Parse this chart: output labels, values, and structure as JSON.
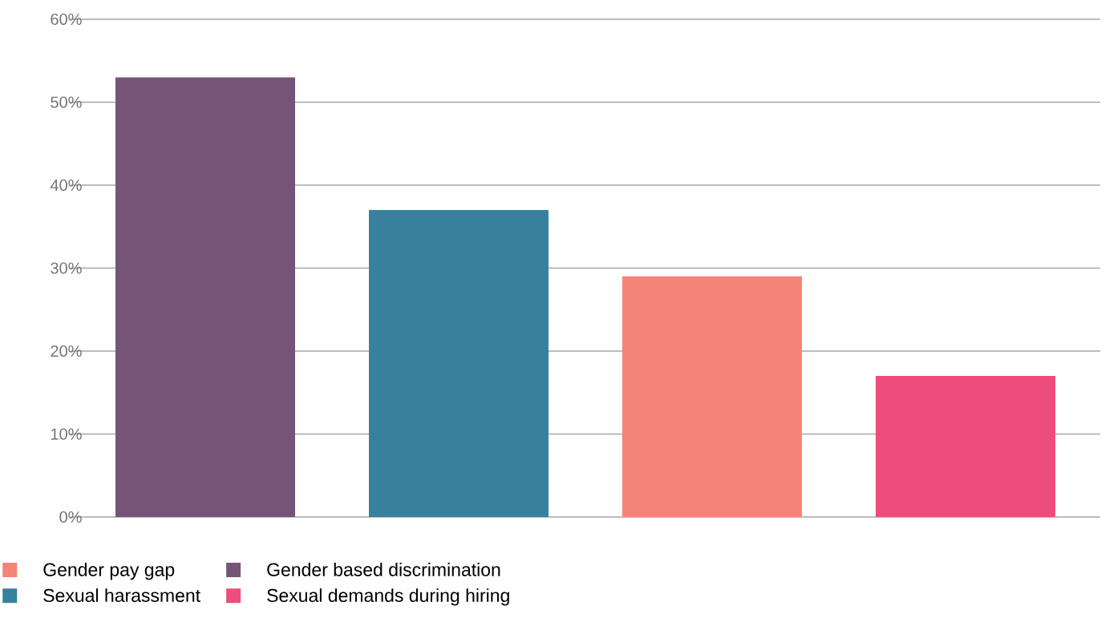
{
  "chart_data": {
    "type": "bar",
    "categories": [
      null,
      null,
      null,
      null
    ],
    "series": [
      {
        "name": "Gender pay gap",
        "color": "#f38477",
        "values": [
          null,
          null,
          29,
          null
        ]
      },
      {
        "name": "Gender based discrimination",
        "color": "#765477",
        "values": [
          53,
          null,
          null,
          null
        ]
      },
      {
        "name": "Sexual harassment",
        "color": "#38819e",
        "values": [
          null,
          37,
          null,
          null
        ]
      },
      {
        "name": "Sexual demands during hiring",
        "color": "#ef4c7e",
        "values": [
          null,
          null,
          null,
          17
        ]
      }
    ],
    "ylim": [
      0,
      60
    ],
    "yticks": [
      {
        "value": 0,
        "label": "0%"
      },
      {
        "value": 10,
        "label": "10%"
      },
      {
        "value": 20,
        "label": "20%"
      },
      {
        "value": 30,
        "label": "30%"
      },
      {
        "value": 40,
        "label": "40%"
      },
      {
        "value": 50,
        "label": "50%"
      },
      {
        "value": 60,
        "label": "60%"
      }
    ],
    "grid": "y",
    "legend": "bottom left"
  }
}
